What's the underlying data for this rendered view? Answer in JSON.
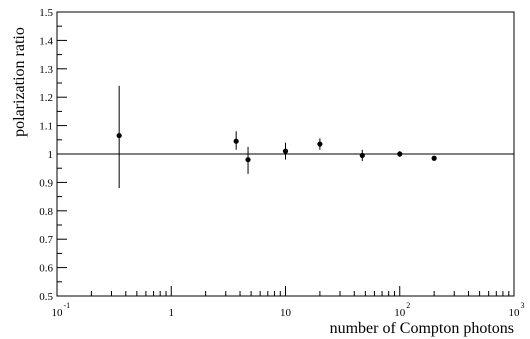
{
  "chart_data": {
    "type": "scatter",
    "title": "",
    "xlabel": "number of Compton photons",
    "ylabel": "polarization ratio",
    "x_scale": "log",
    "xlim": [
      0.1,
      1000
    ],
    "ylim": [
      0.5,
      1.5
    ],
    "x_ticks": [
      {
        "value": 0.1,
        "base": "10",
        "exp": "-1"
      },
      {
        "value": 1,
        "base": "1",
        "exp": ""
      },
      {
        "value": 10,
        "base": "10",
        "exp": ""
      },
      {
        "value": 100,
        "base": "10",
        "exp": "2"
      },
      {
        "value": 1000,
        "base": "10",
        "exp": "3"
      }
    ],
    "y_ticks": [
      "0.5",
      "0.6",
      "0.7",
      "0.8",
      "0.9",
      "1",
      "1.1",
      "1.2",
      "1.3",
      "1.4",
      "1.5"
    ],
    "reference_line_y": 1,
    "grid": false,
    "legend": "none",
    "points": [
      {
        "x": 0.35,
        "y": 1.065,
        "err_low": 0.185,
        "err_high": 0.175
      },
      {
        "x": 3.7,
        "y": 1.045,
        "err_low": 0.03,
        "err_high": 0.035
      },
      {
        "x": 4.7,
        "y": 0.98,
        "err_low": 0.05,
        "err_high": 0.045
      },
      {
        "x": 10,
        "y": 1.01,
        "err_low": 0.03,
        "err_high": 0.03
      },
      {
        "x": 20,
        "y": 1.035,
        "err_low": 0.02,
        "err_high": 0.02
      },
      {
        "x": 47,
        "y": 0.995,
        "err_low": 0.02,
        "err_high": 0.02
      },
      {
        "x": 100,
        "y": 1.0,
        "err_low": 0.01,
        "err_high": 0.01
      },
      {
        "x": 200,
        "y": 0.985,
        "err_low": 0.008,
        "err_high": 0.008
      }
    ]
  }
}
